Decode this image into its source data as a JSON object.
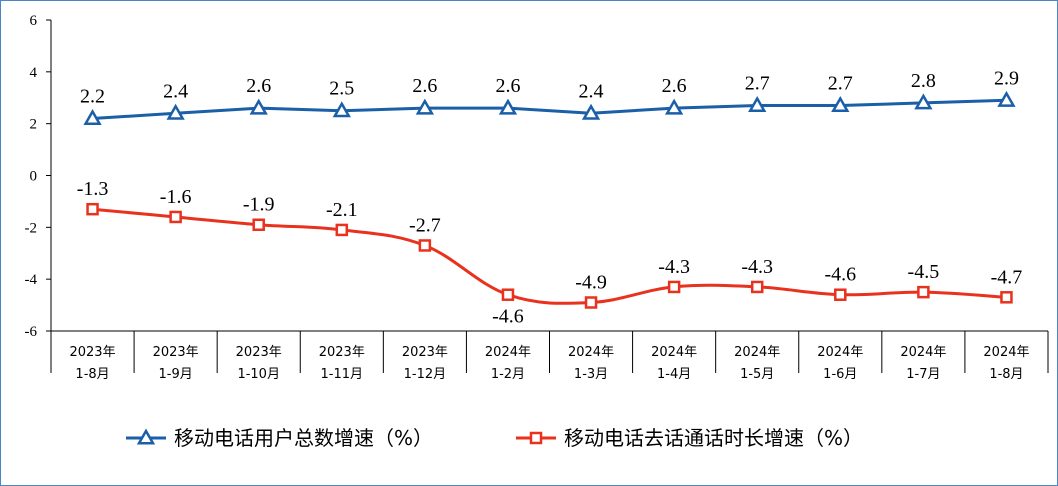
{
  "colors": {
    "series1": "#1a5fa8",
    "series2": "#e8321e",
    "axis": "#000000",
    "frame": "#4a86c5"
  },
  "chart_data": {
    "type": "line",
    "title": "",
    "xlabel": "",
    "ylabel": "",
    "ylim": [
      -6,
      6
    ],
    "yticks": [
      6,
      4,
      2,
      0,
      -2,
      -4,
      -6
    ],
    "yticks_text": [
      "6",
      "4",
      "2",
      "0",
      "-2",
      "-4",
      "-6"
    ],
    "grid": false,
    "legend_position": "bottom-center",
    "categories": [
      [
        "2023年",
        "1-8月"
      ],
      [
        "2023年",
        "1-9月"
      ],
      [
        "2023年",
        "1-10月"
      ],
      [
        "2023年",
        "1-11月"
      ],
      [
        "2023年",
        "1-12月"
      ],
      [
        "2024年",
        "1-2月"
      ],
      [
        "2024年",
        "1-3月"
      ],
      [
        "2024年",
        "1-4月"
      ],
      [
        "2024年",
        "1-5月"
      ],
      [
        "2024年",
        "1-6月"
      ],
      [
        "2024年",
        "1-7月"
      ],
      [
        "2024年",
        "1-8月"
      ]
    ],
    "series": [
      {
        "name": "移动电话用户总数增速（%）",
        "marker": "triangle",
        "color": "#1a5fa8",
        "values": [
          2.2,
          2.4,
          2.6,
          2.5,
          2.6,
          2.6,
          2.4,
          2.6,
          2.7,
          2.7,
          2.8,
          2.9
        ],
        "labels": [
          "2.2",
          "2.4",
          "2.6",
          "2.5",
          "2.6",
          "2.6",
          "2.4",
          "2.6",
          "2.7",
          "2.7",
          "2.8",
          "2.9"
        ]
      },
      {
        "name": "移动电话去话通话时长增速（%）",
        "marker": "square",
        "color": "#e8321e",
        "values": [
          -1.3,
          -1.6,
          -1.9,
          -2.1,
          -2.7,
          -4.6,
          -4.9,
          -4.3,
          -4.3,
          -4.6,
          -4.5,
          -4.7
        ],
        "labels": [
          "-1.3",
          "-1.6",
          "-1.9",
          "-2.1",
          "-2.7",
          "-4.6",
          "-4.9",
          "-4.3",
          "-4.3",
          "-4.6",
          "-4.5",
          "-4.7"
        ]
      }
    ]
  }
}
